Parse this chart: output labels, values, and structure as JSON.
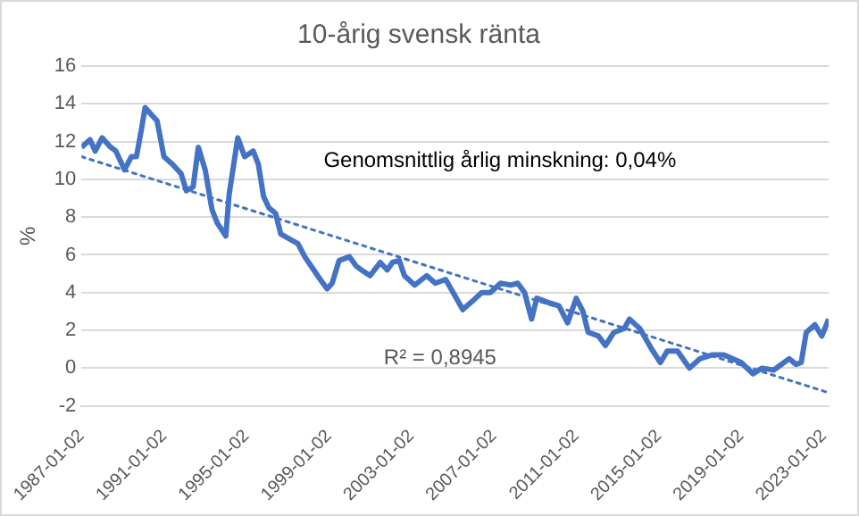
{
  "chart_data": {
    "type": "line",
    "title": "10-årig svensk ränta",
    "ylabel": "%",
    "annotations": [
      "Genomsnittlig årlig minskning: 0,04%",
      "R² = 0,8945"
    ],
    "xlim": [
      "1987-01",
      "2023-04"
    ],
    "xticks": [
      "1987-01-02",
      "1991-01-02",
      "1995-01-02",
      "1999-01-02",
      "2003-01-02",
      "2007-01-02",
      "2011-01-02",
      "2015-01-02",
      "2019-01-02",
      "2023-01-02"
    ],
    "ylim": [
      -2,
      16
    ],
    "yticks": [
      -2,
      0,
      2,
      4,
      6,
      8,
      10,
      12,
      14,
      16
    ],
    "grid": "y",
    "legend": false,
    "series": [
      {
        "color": "#4472c4",
        "line_style": "solid",
        "x": [
          "1987-01",
          "1987-06",
          "1987-09",
          "1988-01",
          "1988-06",
          "1988-09",
          "1989-02",
          "1989-06",
          "1989-09",
          "1989-12",
          "1990-02",
          "1990-06",
          "1990-09",
          "1991-01",
          "1991-06",
          "1991-11",
          "1992-02",
          "1992-06",
          "1992-09",
          "1993-01",
          "1993-05",
          "1993-08",
          "1994-01",
          "1994-03",
          "1994-08",
          "1994-12",
          "1995-05",
          "1995-08",
          "1995-11",
          "1996-02",
          "1996-06",
          "1996-09",
          "1997-03",
          "1997-07",
          "1997-11",
          "1998-05",
          "1998-08",
          "1998-12",
          "1999-03",
          "1999-07",
          "2000-01",
          "2000-05",
          "2000-08",
          "2001-01",
          "2001-07",
          "2001-11",
          "2002-02",
          "2002-06",
          "2002-09",
          "2003-03",
          "2003-10",
          "2004-03",
          "2004-09",
          "2005-07",
          "2005-12",
          "2006-06",
          "2006-11",
          "2007-05",
          "2007-11",
          "2008-03",
          "2008-07",
          "2008-11",
          "2009-02",
          "2009-08",
          "2010-03",
          "2010-08",
          "2011-01",
          "2011-05",
          "2011-08",
          "2012-02",
          "2012-06",
          "2012-11",
          "2013-05",
          "2013-08",
          "2014-02",
          "2014-09",
          "2015-02",
          "2015-06",
          "2015-12",
          "2016-07",
          "2017-01",
          "2017-08",
          "2018-03",
          "2019-01",
          "2019-08",
          "2020-01",
          "2020-08",
          "2021-05",
          "2021-09",
          "2021-12",
          "2022-03",
          "2022-08",
          "2022-12",
          "2023-04"
        ],
        "values": [
          11.7,
          12.1,
          11.5,
          12.2,
          11.7,
          11.5,
          10.5,
          11.2,
          11.2,
          12.7,
          13.8,
          13.4,
          13.1,
          11.2,
          10.8,
          10.3,
          9.4,
          9.6,
          11.7,
          10.5,
          8.4,
          7.7,
          7.0,
          9.2,
          12.2,
          11.2,
          11.5,
          10.8,
          9.1,
          8.5,
          8.2,
          7.1,
          6.8,
          6.6,
          5.9,
          5.1,
          4.7,
          4.2,
          4.5,
          5.7,
          5.9,
          5.4,
          5.2,
          4.9,
          5.6,
          5.2,
          5.6,
          5.7,
          4.9,
          4.4,
          4.9,
          4.5,
          4.7,
          3.1,
          3.5,
          4.0,
          4.0,
          4.5,
          4.4,
          4.5,
          4.0,
          2.6,
          3.7,
          3.5,
          3.3,
          2.4,
          3.7,
          3.0,
          1.9,
          1.7,
          1.2,
          1.9,
          2.1,
          2.6,
          2.1,
          1.0,
          0.3,
          0.9,
          0.9,
          0.0,
          0.5,
          0.7,
          0.7,
          0.3,
          -0.3,
          0.0,
          -0.1,
          0.5,
          0.2,
          0.3,
          1.9,
          2.3,
          1.7,
          2.6
        ]
      },
      {
        "color": "#4472c4",
        "line_style": "dotted",
        "x": [
          "1987-01",
          "2023-04"
        ],
        "values": [
          11.2,
          -1.3
        ]
      }
    ]
  }
}
